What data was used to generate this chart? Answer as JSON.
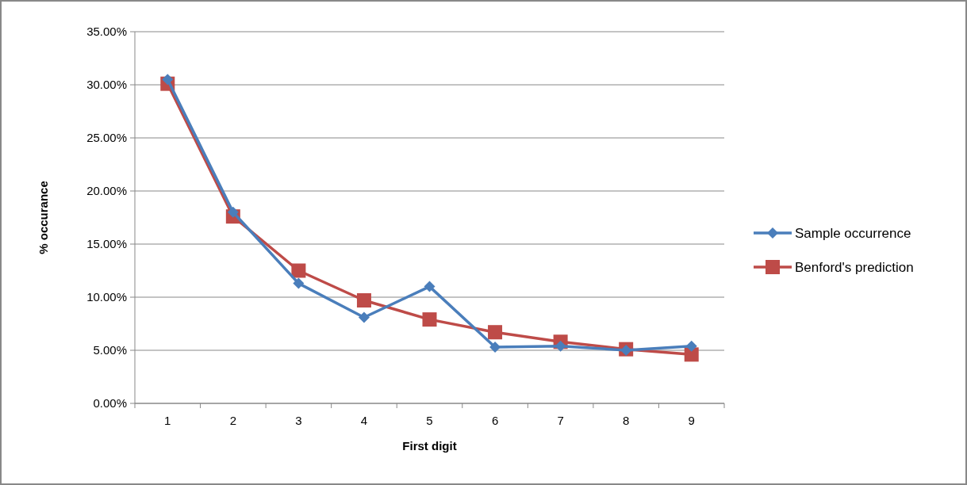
{
  "chart_data": {
    "type": "line",
    "xlabel": "First digit",
    "ylabel": "% occurance",
    "categories": [
      "1",
      "2",
      "3",
      "4",
      "5",
      "6",
      "7",
      "8",
      "9"
    ],
    "series": [
      {
        "name": "Sample occurrence",
        "color": "#4a7ebb",
        "marker": "diamond",
        "values": [
          30.5,
          18.0,
          11.3,
          8.1,
          11.0,
          5.3,
          5.4,
          5.0,
          5.4
        ]
      },
      {
        "name": "Benford's prediction",
        "color": "#be4b48",
        "marker": "square",
        "values": [
          30.1,
          17.6,
          12.5,
          9.7,
          7.9,
          6.7,
          5.8,
          5.1,
          4.6
        ]
      }
    ],
    "ylim": [
      0,
      35
    ],
    "yticks": [
      {
        "value": 0,
        "label": "0.00%"
      },
      {
        "value": 5,
        "label": "5.00%"
      },
      {
        "value": 10,
        "label": "10.00%"
      },
      {
        "value": 15,
        "label": "15.00%"
      },
      {
        "value": 20,
        "label": "20.00%"
      },
      {
        "value": 25,
        "label": "25.00%"
      },
      {
        "value": 30,
        "label": "30.00%"
      },
      {
        "value": 35,
        "label": "35.00%"
      }
    ],
    "grid": "y",
    "legend": "right"
  }
}
